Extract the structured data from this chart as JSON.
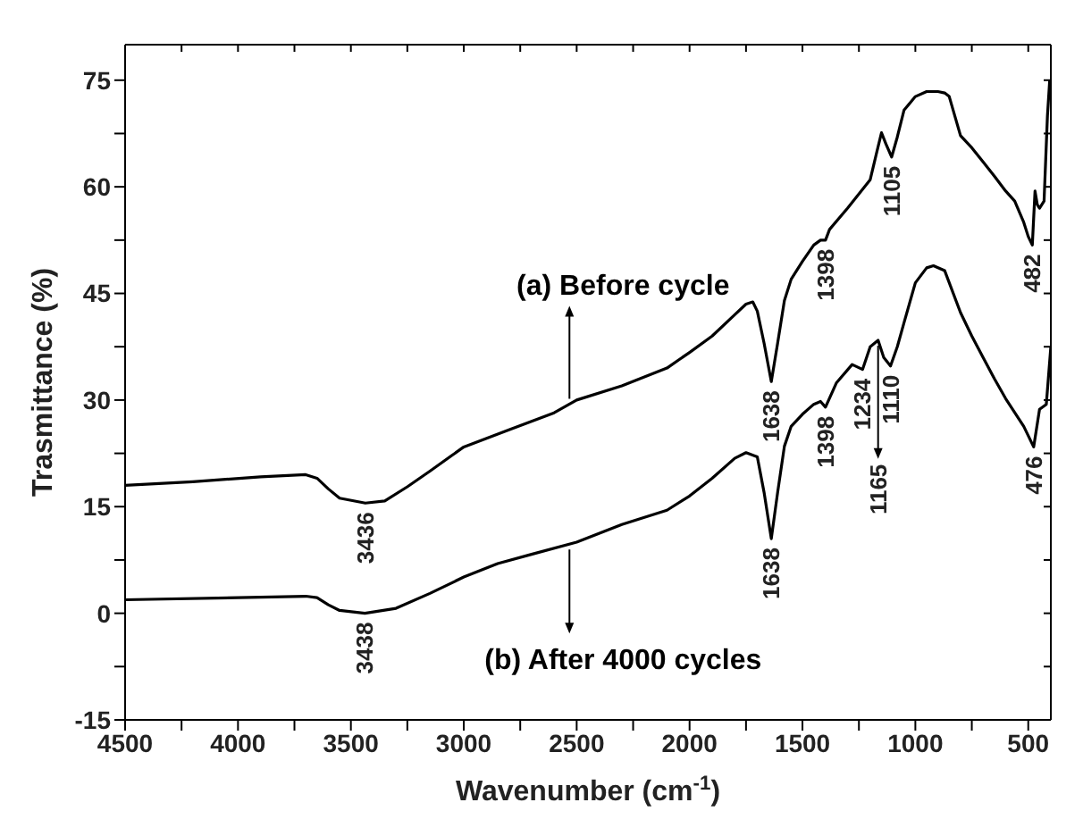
{
  "chart_data": {
    "type": "line",
    "xlabel": "Wavenumber (cm$^{-1}$)",
    "ylabel": "Trasmittance (%)",
    "xlim": [
      4500,
      400
    ],
    "ylim": [
      -15,
      80
    ],
    "xticks": [
      4500,
      {
        "value": 4250,
        "label": null
      },
      4000,
      {
        "value": 3750,
        "label": null
      },
      3500,
      {
        "value": 3250,
        "label": null
      },
      3000,
      {
        "value": 2750,
        "label": null
      },
      2500,
      {
        "value": 2250,
        "label": null
      },
      2000,
      {
        "value": 1750,
        "label": null
      },
      1500,
      {
        "value": 1250,
        "label": null
      },
      1000,
      {
        "value": 750,
        "label": null
      },
      500
    ],
    "yticks": [
      -15,
      {
        "value": -7.5,
        "label": null
      },
      0,
      {
        "value": 7.5,
        "label": null
      },
      15,
      {
        "value": 22.5,
        "label": null
      },
      30,
      {
        "value": 37.5,
        "label": null
      },
      45,
      {
        "value": 52.5,
        "label": null
      },
      60,
      {
        "value": 67.5,
        "label": null
      },
      75
    ],
    "series": [
      {
        "name": "(a) Before cycle",
        "color": "#000000",
        "x": [
          4500,
          4200,
          3900,
          3700,
          3650,
          3600,
          3550,
          3436,
          3350,
          3250,
          3150,
          3000,
          2800,
          2600,
          2500,
          2300,
          2100,
          2000,
          1900,
          1800,
          1750,
          1720,
          1700,
          1670,
          1638,
          1610,
          1580,
          1550,
          1500,
          1450,
          1420,
          1398,
          1380,
          1300,
          1200,
          1170,
          1150,
          1130,
          1105,
          1080,
          1050,
          1000,
          950,
          900,
          870,
          850,
          800,
          750,
          700,
          650,
          600,
          560,
          520,
          500,
          482,
          470,
          460,
          450,
          430,
          415,
          405
        ],
        "values": [
          18.0,
          18.5,
          19.2,
          19.5,
          19.0,
          17.5,
          16.2,
          15.5,
          15.8,
          17.8,
          20,
          23.4,
          25.8,
          28.2,
          30,
          32,
          34.5,
          36.7,
          39,
          42,
          43.5,
          43.8,
          42.5,
          38,
          32.6,
          38,
          44,
          47,
          49.5,
          51.8,
          52.5,
          52.5,
          54,
          57,
          61,
          65,
          67.6,
          66,
          64.2,
          67,
          70.8,
          72.7,
          73.4,
          73.4,
          73.2,
          72.7,
          67.2,
          65.5,
          63.5,
          61.5,
          59.4,
          58,
          55,
          53,
          51.8,
          59.4,
          57.5,
          57,
          58,
          70,
          75
        ]
      },
      {
        "name": "(b) After 4000 cycles",
        "color": "#000000",
        "x": [
          4500,
          4000,
          3700,
          3650,
          3600,
          3550,
          3438,
          3300,
          3150,
          3000,
          2850,
          2700,
          2500,
          2300,
          2100,
          2000,
          1900,
          1800,
          1750,
          1700,
          1670,
          1638,
          1610,
          1580,
          1550,
          1500,
          1450,
          1420,
          1398,
          1350,
          1280,
          1234,
          1200,
          1165,
          1140,
          1110,
          1080,
          1050,
          1000,
          950,
          920,
          870,
          800,
          750,
          700,
          650,
          600,
          520,
          476,
          450,
          420,
          400
        ],
        "values": [
          1.9,
          2.2,
          2.4,
          2.2,
          1.2,
          0.4,
          0,
          0.7,
          2.8,
          5.1,
          7,
          8.3,
          10,
          12.5,
          14.5,
          16.5,
          19,
          21.8,
          22.6,
          22,
          17,
          10.5,
          17,
          23.5,
          26.3,
          28,
          29.4,
          29.8,
          29,
          32.4,
          35,
          34.3,
          37.5,
          38.4,
          36,
          34.8,
          37.5,
          40.9,
          46.5,
          48.6,
          48.9,
          48.2,
          42.3,
          39,
          36,
          33,
          30.2,
          26.3,
          23.4,
          28.7,
          29.4,
          37.5
        ]
      }
    ],
    "annotations": [
      {
        "text": "3436",
        "x": 3436,
        "y": 15.5
      },
      {
        "text": "1638",
        "x": 1638,
        "y": 32.6
      },
      {
        "text": "1398",
        "x": 1398,
        "y": 52.5
      },
      {
        "text": "1105",
        "x": 1105,
        "y": 64.2
      },
      {
        "text": "482",
        "x": 482,
        "y": 51.8
      },
      {
        "text": "3438",
        "x": 3438,
        "y": 0
      },
      {
        "text": "1638",
        "x": 1638,
        "y": 10.5
      },
      {
        "text": "1398",
        "x": 1398,
        "y": 29
      },
      {
        "text": "1234",
        "x": 1234,
        "y": 34.3
      },
      {
        "text": "1165",
        "x": 1165,
        "y": 38.4
      },
      {
        "text": "1110",
        "x": 1110,
        "y": 34.8
      },
      {
        "text": "476",
        "x": 476,
        "y": 23.4
      }
    ]
  }
}
